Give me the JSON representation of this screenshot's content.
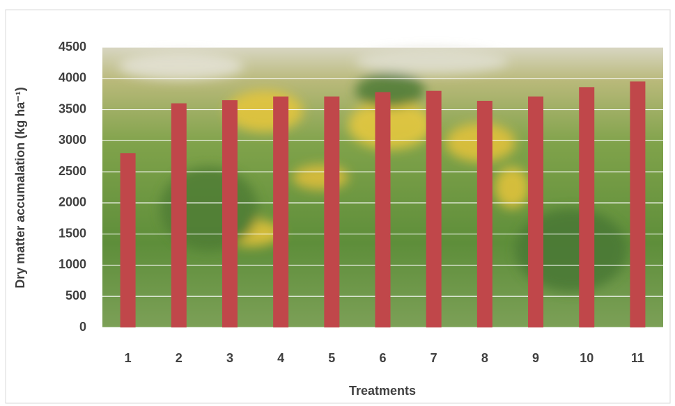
{
  "chart_data": {
    "type": "bar",
    "x_label": "Treatments",
    "y_label": "Dry matter accumalation (kg ha⁻¹)",
    "categories": [
      "1",
      "2",
      "3",
      "4",
      "5",
      "6",
      "7",
      "8",
      "9",
      "10",
      "11"
    ],
    "values": [
      2800,
      3600,
      3650,
      3710,
      3710,
      3780,
      3800,
      3640,
      3710,
      3860,
      3950
    ],
    "color": "#c0474a",
    "ylim": [
      0,
      4500
    ],
    "yticks": [
      0,
      500,
      1000,
      1500,
      2000,
      2500,
      3000,
      3500,
      4000,
      4500
    ],
    "grid": true
  }
}
